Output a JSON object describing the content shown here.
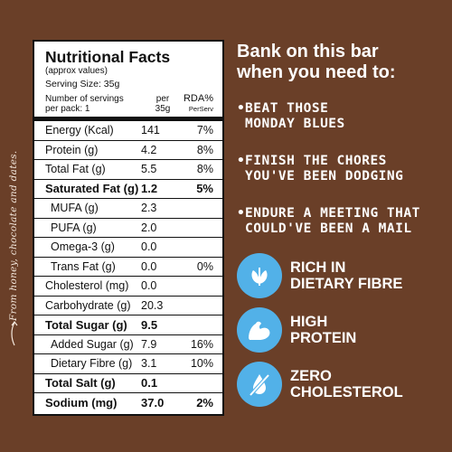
{
  "side_note": "From honey, chocolate and dates.",
  "panel": {
    "title": "Nutritional Facts",
    "subtitle": "(approx values)",
    "serving_size": "Serving Size: 35g",
    "servings_label_1": "Number of servings",
    "servings_label_2": "per pack: 1",
    "col1_line1": "per",
    "col1_line2": "35g",
    "col2_line1": "RDA%",
    "col2_line2": "PerServ",
    "rows": [
      {
        "label": "Energy (Kcal)",
        "v1": "141",
        "v2": "7%"
      },
      {
        "label": "Protein (g)",
        "v1": "4.2",
        "v2": "8%"
      },
      {
        "label": "Total Fat (g)",
        "v1": "5.5",
        "v2": "8%"
      },
      {
        "label": "Saturated Fat (g)",
        "v1": "1.2",
        "v2": "5%"
      },
      {
        "label": "MUFA (g)",
        "v1": "2.3",
        "v2": ""
      },
      {
        "label": "PUFA (g)",
        "v1": "2.0",
        "v2": ""
      },
      {
        "label": "Omega-3 (g)",
        "v1": "0.0",
        "v2": ""
      },
      {
        "label": "Trans Fat (g)",
        "v1": "0.0",
        "v2": "0%"
      },
      {
        "label": "Cholesterol (mg)",
        "v1": "0.0",
        "v2": ""
      },
      {
        "label": "Carbohydrate (g)",
        "v1": "20.3",
        "v2": ""
      },
      {
        "label": "Total Sugar (g)",
        "v1": "9.5",
        "v2": ""
      },
      {
        "label": "Added Sugar (g)",
        "v1": "7.9",
        "v2": "16%"
      },
      {
        "label": "Dietary Fibre (g)",
        "v1": "3.1",
        "v2": "10%"
      },
      {
        "label": "Total Salt (g)",
        "v1": "0.1",
        "v2": ""
      },
      {
        "label": "Sodium (mg)",
        "v1": "37.0",
        "v2": "2%"
      }
    ]
  },
  "right": {
    "heading_line1": "Bank on this bar",
    "heading_line2": "when you need to:",
    "bullets": [
      {
        "line1": "BEAT THOSE",
        "line2": "MONDAY BLUES"
      },
      {
        "line1": "FINISH THE CHORES",
        "line2": "YOU'VE BEEN DODGING"
      },
      {
        "line1": "ENDURE A MEETING THAT",
        "line2": "COULD'VE BEEN A MAIL"
      }
    ],
    "benefits": [
      {
        "icon": "leaf-icon",
        "line1": "RICH IN",
        "line2": "DIETARY FIBRE"
      },
      {
        "icon": "bicep-icon",
        "line1": "HIGH",
        "line2": "PROTEIN"
      },
      {
        "icon": "no-drop-icon",
        "line1": "ZERO",
        "line2": "CHOLESTEROL"
      }
    ]
  },
  "colors": {
    "background": "#6a3f28",
    "badge": "#52b1e8",
    "panel": "#ffffff"
  }
}
